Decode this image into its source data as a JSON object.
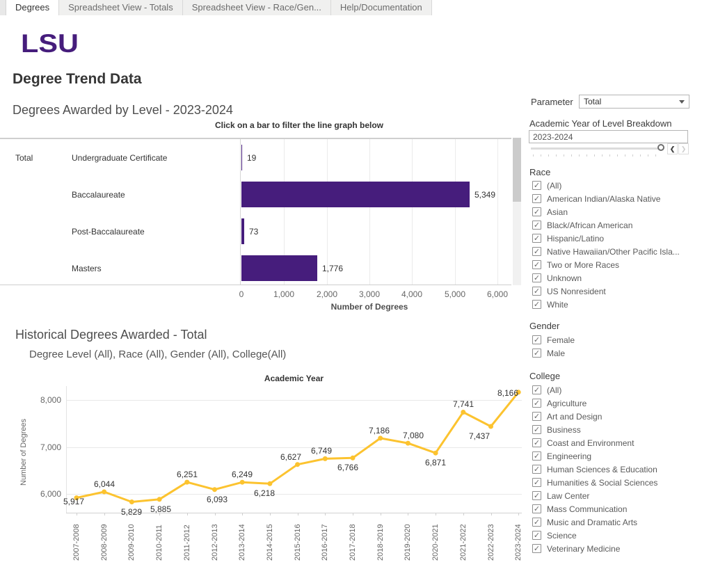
{
  "tabs": {
    "items": [
      {
        "label": "Degrees",
        "active": true
      },
      {
        "label": "Spreadsheet View - Totals",
        "active": false
      },
      {
        "label": "Spreadsheet View - Race/Gen...",
        "active": false
      },
      {
        "label": "Help/Documentation",
        "active": false
      }
    ]
  },
  "logo_text": "LSU",
  "page_title": "Degree Trend Data",
  "colors": {
    "lsu_purple": "#461D7C",
    "bar_fill": "#461D7C",
    "line_gold": "#FCC32F"
  },
  "parameter": {
    "label": "Parameter",
    "value": "Total"
  },
  "year_filter": {
    "label": "Academic Year of Level Breakdown",
    "value": "2023-2024"
  },
  "filters": {
    "race": {
      "title": "Race",
      "checked": true,
      "options": [
        "(All)",
        "American Indian/Alaska Native",
        "Asian",
        "Black/African American",
        "Hispanic/Latino",
        "Native Hawaiian/Other Pacific Isla...",
        "Two or More Races",
        "Unknown",
        "US Nonresident",
        "White"
      ]
    },
    "gender": {
      "title": "Gender",
      "checked": true,
      "options": [
        "Female",
        "Male"
      ]
    },
    "college": {
      "title": "College",
      "checked": true,
      "options": [
        "(All)",
        "Agriculture",
        "Art and Design",
        "Business",
        "Coast and Environment",
        "Engineering",
        "Human Sciences & Education",
        "Humanities & Social Sciences",
        "Law Center",
        "Mass Communication",
        "Music and Dramatic Arts",
        "Science",
        "Veterinary Medicine"
      ]
    }
  },
  "chart_data": [
    {
      "type": "bar",
      "orientation": "horizontal",
      "title": "Degrees Awarded by Level - 2023-2024",
      "subtitle": "Click on a bar to filter the line graph below",
      "row_header": "Total",
      "categories": [
        "Undergraduate Certificate",
        "Baccalaureate",
        "Post-Baccalaureate",
        "Masters"
      ],
      "values": [
        19,
        5349,
        73,
        1776
      ],
      "value_labels": [
        "19",
        "5,349",
        "73",
        "1,776"
      ],
      "xlabel": "Number of Degrees",
      "xlim": [
        0,
        6000
      ],
      "x_ticks": [
        "0",
        "1,000",
        "2,000",
        "3,000",
        "4,000",
        "5,000",
        "6,000"
      ],
      "x_tick_values": [
        0,
        1000,
        2000,
        3000,
        4000,
        5000,
        6000
      ],
      "grid": true,
      "bar_color": "#461D7C"
    },
    {
      "type": "line",
      "title": "Historical Degrees Awarded - Total",
      "subtitle": "Degree Level (All), Race (All), Gender (All), College(All)",
      "top_axis_label": "Academic Year",
      "ylabel": "Number of Degrees",
      "categories": [
        "2007-2008",
        "2008-2009",
        "2009-2010",
        "2010-2011",
        "2011-2012",
        "2012-2013",
        "2013-2014",
        "2014-2015",
        "2015-2016",
        "2016-2017",
        "2017-2018",
        "2018-2019",
        "2019-2020",
        "2020-2021",
        "2021-2022",
        "2022-2023",
        "2023-2024"
      ],
      "values": [
        5917,
        6044,
        5829,
        5885,
        6251,
        6093,
        6249,
        6218,
        6627,
        6749,
        6766,
        7186,
        7080,
        6871,
        7741,
        7437,
        8166
      ],
      "value_labels": [
        "5,917",
        "6,044",
        "5,829",
        "5,885",
        "6,251",
        "6,093",
        "6,249",
        "6,218",
        "6,627",
        "6,749",
        "6,766",
        "7,186",
        "7,080",
        "6,871",
        "7,741",
        "7,437",
        "8,166"
      ],
      "label_pos": [
        "below",
        "above",
        "below",
        "below",
        "above",
        "below",
        "above",
        "below",
        "above",
        "above",
        "below",
        "above",
        "above",
        "below",
        "above",
        "below",
        "above"
      ],
      "label_dx": [
        -4,
        0,
        0,
        2,
        0,
        3,
        0,
        -8,
        -10,
        -5,
        -7,
        -2,
        8,
        0,
        0,
        -17,
        -15
      ],
      "label_dy": [
        -9,
        0,
        0,
        0,
        0,
        0,
        0,
        0,
        0,
        0,
        0,
        0,
        0,
        0,
        0,
        0,
        12
      ],
      "y_ticks": [
        "6,000",
        "7,000",
        "8,000"
      ],
      "y_tick_values": [
        6000,
        7000,
        8000
      ],
      "ylim": [
        5600,
        8300
      ],
      "grid": true,
      "legend": "none",
      "line_color": "#FCC32F"
    }
  ]
}
